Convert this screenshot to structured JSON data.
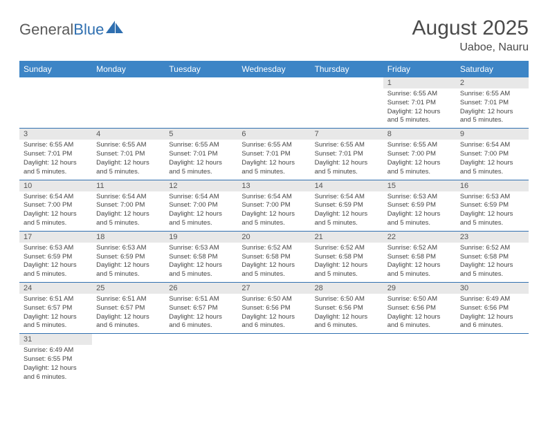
{
  "logo": {
    "text1": "General",
    "text2": "Blue"
  },
  "title": "August 2025",
  "subtitle": "Uaboe, Nauru",
  "header_bg": "#3d85c6",
  "daynum_bg": "#e8e8e8",
  "row_border": "#2f6fb0",
  "weekdays": [
    "Sunday",
    "Monday",
    "Tuesday",
    "Wednesday",
    "Thursday",
    "Friday",
    "Saturday"
  ],
  "weeks": [
    [
      null,
      null,
      null,
      null,
      null,
      {
        "num": "1",
        "sunrise": "6:55 AM",
        "sunset": "7:01 PM",
        "daylight": "12 hours and 5 minutes."
      },
      {
        "num": "2",
        "sunrise": "6:55 AM",
        "sunset": "7:01 PM",
        "daylight": "12 hours and 5 minutes."
      }
    ],
    [
      {
        "num": "3",
        "sunrise": "6:55 AM",
        "sunset": "7:01 PM",
        "daylight": "12 hours and 5 minutes."
      },
      {
        "num": "4",
        "sunrise": "6:55 AM",
        "sunset": "7:01 PM",
        "daylight": "12 hours and 5 minutes."
      },
      {
        "num": "5",
        "sunrise": "6:55 AM",
        "sunset": "7:01 PM",
        "daylight": "12 hours and 5 minutes."
      },
      {
        "num": "6",
        "sunrise": "6:55 AM",
        "sunset": "7:01 PM",
        "daylight": "12 hours and 5 minutes."
      },
      {
        "num": "7",
        "sunrise": "6:55 AM",
        "sunset": "7:01 PM",
        "daylight": "12 hours and 5 minutes."
      },
      {
        "num": "8",
        "sunrise": "6:55 AM",
        "sunset": "7:00 PM",
        "daylight": "12 hours and 5 minutes."
      },
      {
        "num": "9",
        "sunrise": "6:54 AM",
        "sunset": "7:00 PM",
        "daylight": "12 hours and 5 minutes."
      }
    ],
    [
      {
        "num": "10",
        "sunrise": "6:54 AM",
        "sunset": "7:00 PM",
        "daylight": "12 hours and 5 minutes."
      },
      {
        "num": "11",
        "sunrise": "6:54 AM",
        "sunset": "7:00 PM",
        "daylight": "12 hours and 5 minutes."
      },
      {
        "num": "12",
        "sunrise": "6:54 AM",
        "sunset": "7:00 PM",
        "daylight": "12 hours and 5 minutes."
      },
      {
        "num": "13",
        "sunrise": "6:54 AM",
        "sunset": "7:00 PM",
        "daylight": "12 hours and 5 minutes."
      },
      {
        "num": "14",
        "sunrise": "6:54 AM",
        "sunset": "6:59 PM",
        "daylight": "12 hours and 5 minutes."
      },
      {
        "num": "15",
        "sunrise": "6:53 AM",
        "sunset": "6:59 PM",
        "daylight": "12 hours and 5 minutes."
      },
      {
        "num": "16",
        "sunrise": "6:53 AM",
        "sunset": "6:59 PM",
        "daylight": "12 hours and 5 minutes."
      }
    ],
    [
      {
        "num": "17",
        "sunrise": "6:53 AM",
        "sunset": "6:59 PM",
        "daylight": "12 hours and 5 minutes."
      },
      {
        "num": "18",
        "sunrise": "6:53 AM",
        "sunset": "6:59 PM",
        "daylight": "12 hours and 5 minutes."
      },
      {
        "num": "19",
        "sunrise": "6:53 AM",
        "sunset": "6:58 PM",
        "daylight": "12 hours and 5 minutes."
      },
      {
        "num": "20",
        "sunrise": "6:52 AM",
        "sunset": "6:58 PM",
        "daylight": "12 hours and 5 minutes."
      },
      {
        "num": "21",
        "sunrise": "6:52 AM",
        "sunset": "6:58 PM",
        "daylight": "12 hours and 5 minutes."
      },
      {
        "num": "22",
        "sunrise": "6:52 AM",
        "sunset": "6:58 PM",
        "daylight": "12 hours and 5 minutes."
      },
      {
        "num": "23",
        "sunrise": "6:52 AM",
        "sunset": "6:58 PM",
        "daylight": "12 hours and 5 minutes."
      }
    ],
    [
      {
        "num": "24",
        "sunrise": "6:51 AM",
        "sunset": "6:57 PM",
        "daylight": "12 hours and 5 minutes."
      },
      {
        "num": "25",
        "sunrise": "6:51 AM",
        "sunset": "6:57 PM",
        "daylight": "12 hours and 6 minutes."
      },
      {
        "num": "26",
        "sunrise": "6:51 AM",
        "sunset": "6:57 PM",
        "daylight": "12 hours and 6 minutes."
      },
      {
        "num": "27",
        "sunrise": "6:50 AM",
        "sunset": "6:56 PM",
        "daylight": "12 hours and 6 minutes."
      },
      {
        "num": "28",
        "sunrise": "6:50 AM",
        "sunset": "6:56 PM",
        "daylight": "12 hours and 6 minutes."
      },
      {
        "num": "29",
        "sunrise": "6:50 AM",
        "sunset": "6:56 PM",
        "daylight": "12 hours and 6 minutes."
      },
      {
        "num": "30",
        "sunrise": "6:49 AM",
        "sunset": "6:56 PM",
        "daylight": "12 hours and 6 minutes."
      }
    ],
    [
      {
        "num": "31",
        "sunrise": "6:49 AM",
        "sunset": "6:55 PM",
        "daylight": "12 hours and 6 minutes."
      },
      null,
      null,
      null,
      null,
      null,
      null
    ]
  ],
  "labels": {
    "sunrise": "Sunrise: ",
    "sunset": "Sunset: ",
    "daylight": "Daylight: "
  }
}
